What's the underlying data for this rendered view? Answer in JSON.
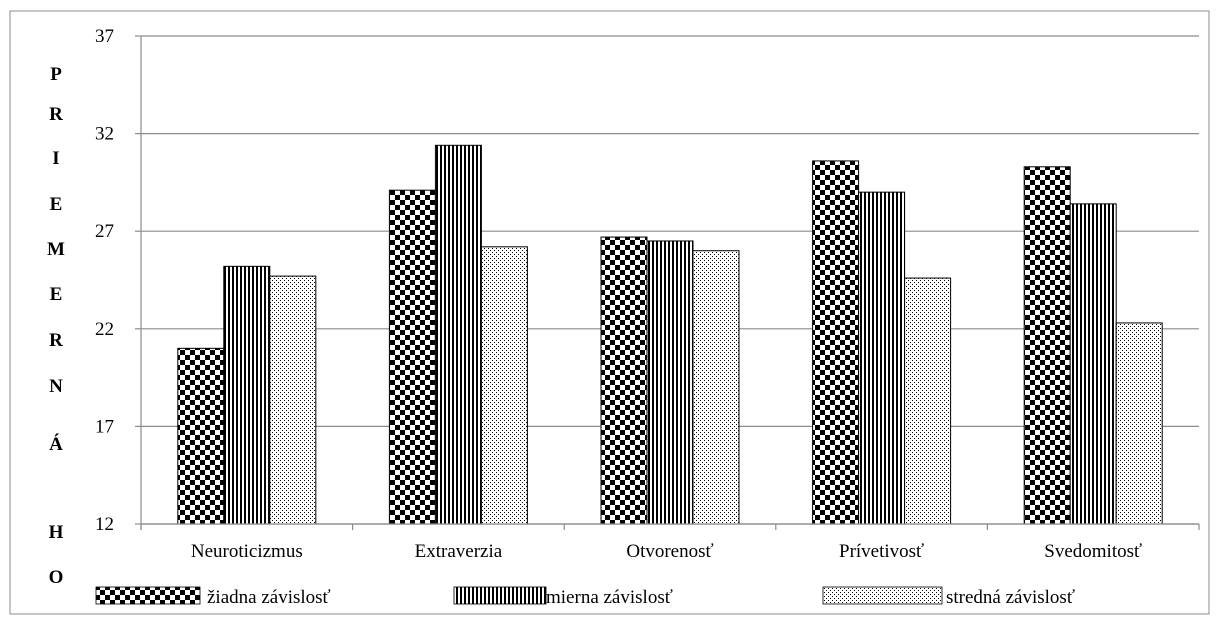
{
  "chart_data": {
    "type": "bar",
    "categories": [
      "Neuroticizmus",
      "Extraverzia",
      "Otvorenosť",
      "Prívetivosť",
      "Svedomitosť"
    ],
    "series": [
      {
        "name": "žiadna závislosť",
        "values": [
          21.0,
          29.1,
          26.7,
          30.6,
          30.3
        ],
        "pattern": "checker"
      },
      {
        "name": "mierna závislosť",
        "values": [
          25.2,
          31.4,
          26.5,
          29.0,
          28.4
        ],
        "pattern": "vstripes"
      },
      {
        "name": "stredná závislosť",
        "values": [
          24.7,
          26.2,
          26.0,
          24.6,
          22.3
        ],
        "pattern": "dots"
      }
    ],
    "ylim": [
      12,
      37
    ],
    "yticks": [
      12,
      17,
      22,
      27,
      32,
      37
    ],
    "ylabel_letters": [
      "P",
      "R",
      "I",
      "E",
      "M",
      "E",
      "R",
      "N",
      "Á",
      "H",
      "O"
    ],
    "grid": true,
    "legend_position": "bottom"
  },
  "colors": {
    "bar_fill": "#000000",
    "background": "#ffffff",
    "gridline": "#8c8c8c",
    "frame": "#8c8c8c"
  }
}
